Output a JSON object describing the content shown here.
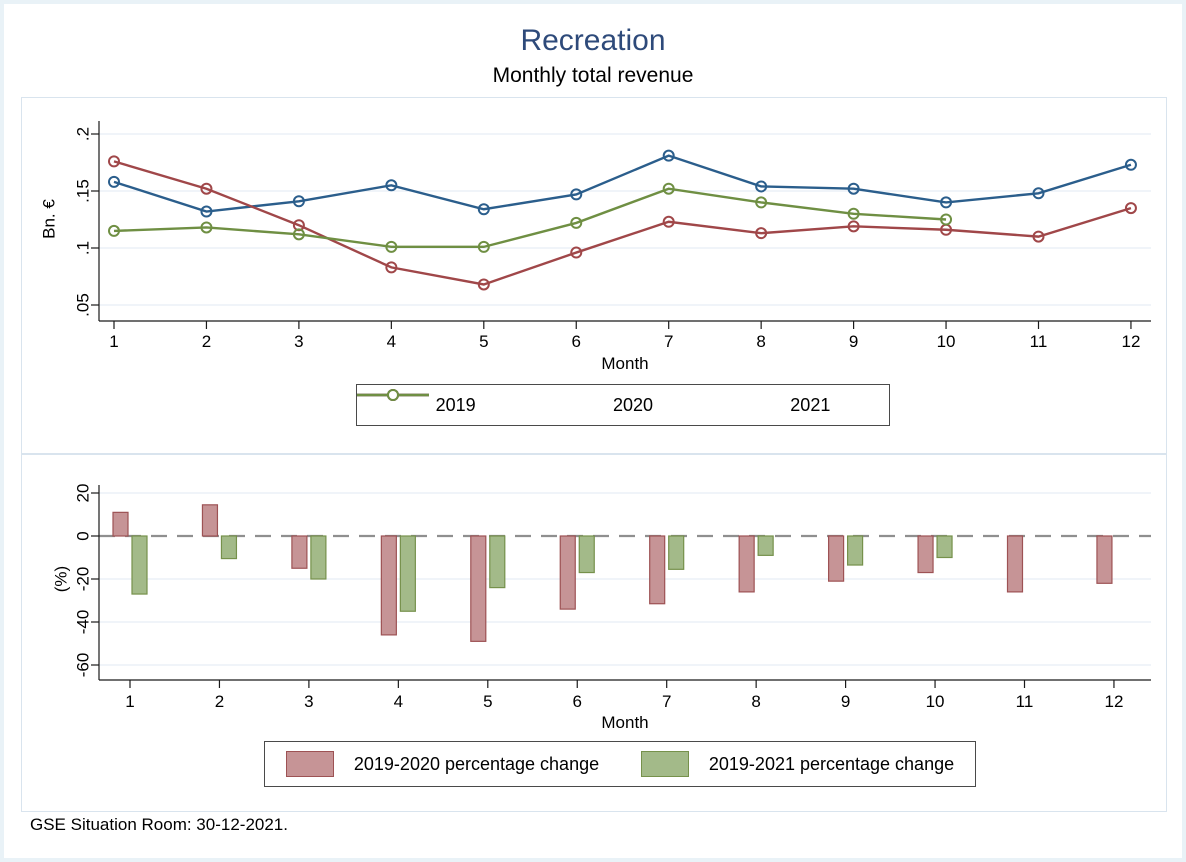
{
  "header": {
    "title": "Recreation",
    "subtitle": "Monthly total revenue"
  },
  "footer": {
    "note": "GSE Situation Room: 30-12-2021."
  },
  "colors": {
    "page_bg": "#e9f2f7",
    "panel_border": "#d9e4ee",
    "grid": "#e8eef5",
    "axis": "#1a1a1a",
    "zero_line": "#8f8f8f",
    "title": "#2e4a7a"
  },
  "chart_data": [
    {
      "type": "line",
      "title": "Monthly total revenue",
      "xlabel": "Month",
      "ylabel": "Bn. €",
      "x": [
        1,
        2,
        3,
        4,
        5,
        6,
        7,
        8,
        9,
        10,
        11,
        12
      ],
      "yticks": [
        0.05,
        0.1,
        0.15,
        0.2
      ],
      "ytick_labels": [
        ".05",
        ".1",
        ".15",
        ".2"
      ],
      "ylim": [
        0.04,
        0.21
      ],
      "grid": true,
      "legend_position": "bottom",
      "series": [
        {
          "name": "2019",
          "color": "#2b5e8c",
          "values": [
            0.158,
            0.132,
            0.141,
            0.155,
            0.134,
            0.147,
            0.181,
            0.154,
            0.152,
            0.14,
            0.148,
            0.173
          ]
        },
        {
          "name": "2020",
          "color": "#a04749",
          "values": [
            0.176,
            0.152,
            0.12,
            0.083,
            0.068,
            0.096,
            0.123,
            0.113,
            0.119,
            0.116,
            0.11,
            0.135
          ]
        },
        {
          "name": "2021",
          "color": "#6f8f43",
          "values": [
            0.115,
            0.118,
            0.112,
            0.101,
            0.101,
            0.122,
            0.152,
            0.14,
            0.13,
            0.125,
            null,
            null
          ]
        }
      ]
    },
    {
      "type": "bar",
      "xlabel": "Month",
      "ylabel": "(%)",
      "categories": [
        1,
        2,
        3,
        4,
        5,
        6,
        7,
        8,
        9,
        10,
        11,
        12
      ],
      "yticks": [
        20,
        0,
        -20,
        -40,
        -60
      ],
      "ytick_labels": [
        "20",
        "0",
        "-20",
        "-40",
        "-60"
      ],
      "ylim": [
        -65,
        25
      ],
      "grid": true,
      "zero_line": true,
      "legend_position": "bottom",
      "series": [
        {
          "name": "2019-2020 percentage change",
          "fill": "#c69496",
          "stroke": "#9d5254",
          "values": [
            11,
            14.5,
            -15,
            -46,
            -49,
            -34,
            -31.5,
            -26,
            -21,
            -17,
            -26,
            -22
          ]
        },
        {
          "name": "2019-2021 percentage change",
          "fill": "#a3ba89",
          "stroke": "#76914b",
          "values": [
            -27,
            -10.5,
            -20,
            -35,
            -24,
            -17,
            -15.5,
            -9,
            -13.5,
            -10,
            null,
            null
          ]
        }
      ]
    }
  ]
}
